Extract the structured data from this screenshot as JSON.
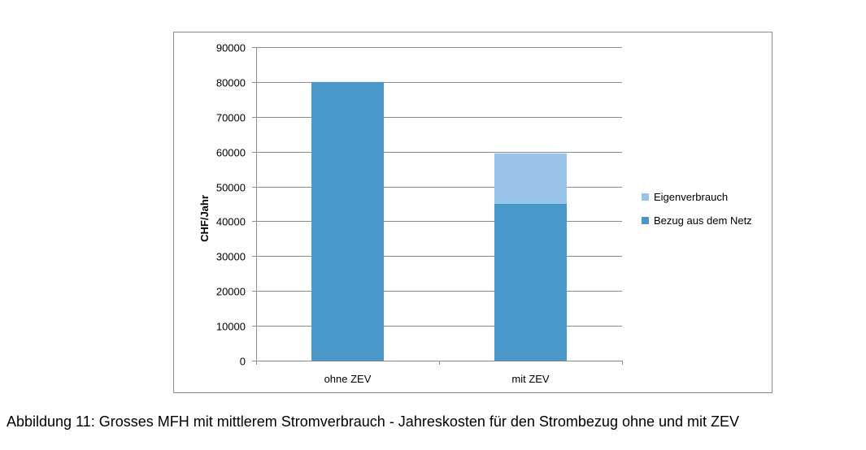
{
  "chart_data": {
    "type": "bar",
    "stacked": true,
    "categories": [
      "ohne ZEV",
      "mit ZEV"
    ],
    "series": [
      {
        "name": "Bezug aus dem Netz",
        "values": [
          80000,
          45000
        ],
        "color": "#4a97c9"
      },
      {
        "name": "Eigenverbrauch",
        "values": [
          0,
          14500
        ],
        "color": "#97c4e8"
      }
    ],
    "xlabel": "",
    "ylabel": "CHF/Jahr",
    "ylim": [
      0,
      90000
    ],
    "yticks": [
      0,
      10000,
      20000,
      30000,
      40000,
      50000,
      60000,
      70000,
      80000,
      90000
    ],
    "grid": true,
    "legend": {
      "position": "right",
      "entries": [
        "Eigenverbrauch",
        "Bezug aus dem Netz"
      ]
    }
  },
  "caption": "Abbildung 11: Grosses MFH mit mittlerem Stromverbrauch - Jahreskosten für den Strombezug ohne und mit ZEV"
}
